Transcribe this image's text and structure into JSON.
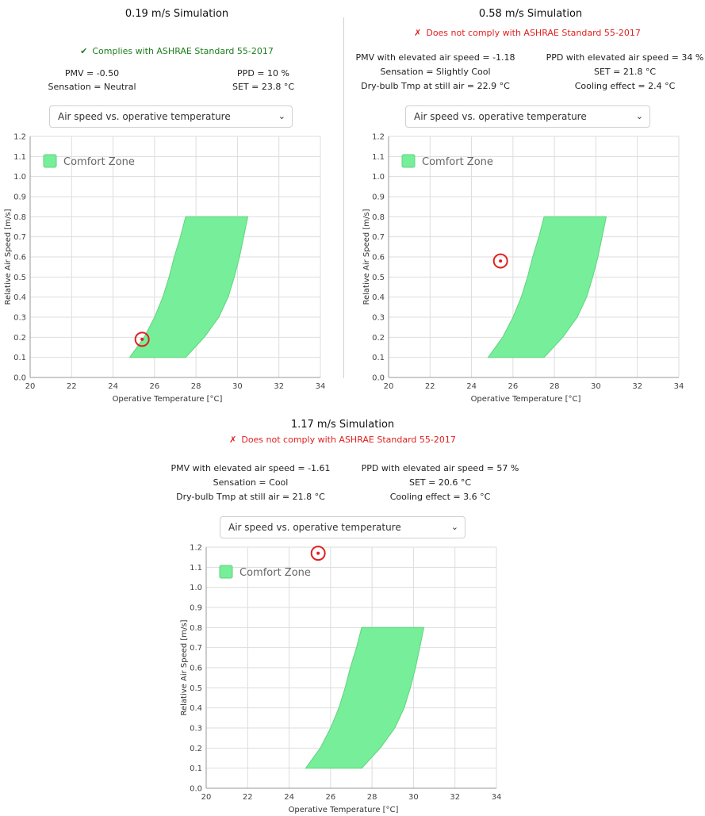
{
  "colors": {
    "comfort_fill": "#77ee99",
    "comfort_stroke": "#5fd47f",
    "point": "#e02020",
    "ok": "#1e7e1e",
    "bad": "#e02020",
    "grid": "#dddddd"
  },
  "panels": [
    {
      "title": "0.19 m/s Simulation",
      "status": {
        "ok": true,
        "icon": "check-icon",
        "mark": "✔",
        "text": "Complies with ASHRAE Standard 55-2017"
      },
      "metrics": {
        "left": [
          "PMV = -0.50",
          "Sensation = Neutral"
        ],
        "right": [
          "PPD = 10 %",
          "SET = 23.8 °C"
        ]
      },
      "select": {
        "value": "Air speed vs. operative temperature"
      }
    },
    {
      "title": "0.58 m/s Simulation",
      "status": {
        "ok": false,
        "icon": "cross-icon",
        "mark": "✗",
        "text": "Does not comply with ASHRAE Standard 55-2017"
      },
      "metrics": {
        "left": [
          "PMV with elevated air speed = -1.18",
          "Sensation = Slightly Cool",
          "Dry-bulb Tmp at still air = 22.9 °C"
        ],
        "right": [
          "PPD with elevated air speed = 34 %",
          "SET = 21.8 °C",
          "Cooling effect = 2.4 °C"
        ]
      },
      "select": {
        "value": "Air speed vs. operative temperature"
      }
    },
    {
      "title": "1.17 m/s Simulation",
      "status": {
        "ok": false,
        "icon": "cross-icon",
        "mark": "✗",
        "text": "Does not comply with ASHRAE Standard 55-2017"
      },
      "metrics": {
        "left": [
          "PMV with elevated air speed = -1.61",
          "Sensation = Cool",
          "Dry-bulb Tmp at still air = 21.8 °C"
        ],
        "right": [
          "PPD with elevated air speed = 57 %",
          "SET = 20.6 °C",
          "Cooling effect = 3.6 °C"
        ]
      },
      "select": {
        "value": "Air speed vs. operative temperature"
      }
    }
  ],
  "chart_data": [
    {
      "type": "area",
      "xlabel": "Operative Temperature [°C]",
      "ylabel": "Relative Air Speed [m/s]",
      "xlim": [
        20,
        34
      ],
      "ylim": [
        0,
        1.2
      ],
      "xticks": [
        20,
        22,
        24,
        26,
        28,
        30,
        32,
        34
      ],
      "yticks": [
        0.0,
        0.1,
        0.2,
        0.3,
        0.4,
        0.5,
        0.6,
        0.7,
        0.8,
        0.9,
        1.0,
        1.1,
        1.2
      ],
      "legend": {
        "label": "Comfort Zone",
        "placement": "top-left"
      },
      "grid": true,
      "comfort_zone": {
        "lower_edge": [
          [
            24.8,
            0.1
          ],
          [
            25.5,
            0.2
          ],
          [
            26.0,
            0.3
          ],
          [
            26.4,
            0.4
          ],
          [
            26.7,
            0.5
          ],
          [
            26.95,
            0.6
          ],
          [
            27.25,
            0.7
          ],
          [
            27.5,
            0.8
          ]
        ],
        "upper_edge": [
          [
            27.5,
            0.1
          ],
          [
            28.4,
            0.2
          ],
          [
            29.1,
            0.3
          ],
          [
            29.55,
            0.4
          ],
          [
            29.85,
            0.5
          ],
          [
            30.1,
            0.6
          ],
          [
            30.3,
            0.7
          ],
          [
            30.5,
            0.8
          ]
        ]
      },
      "point": {
        "x": 25.4,
        "y": 0.19
      }
    },
    {
      "type": "area",
      "xlabel": "Operative Temperature [°C]",
      "ylabel": "Relative Air Speed [m/s]",
      "xlim": [
        20,
        34
      ],
      "ylim": [
        0,
        1.2
      ],
      "xticks": [
        20,
        22,
        24,
        26,
        28,
        30,
        32,
        34
      ],
      "yticks": [
        0.0,
        0.1,
        0.2,
        0.3,
        0.4,
        0.5,
        0.6,
        0.7,
        0.8,
        0.9,
        1.0,
        1.1,
        1.2
      ],
      "legend": {
        "label": "Comfort Zone",
        "placement": "top-left"
      },
      "grid": true,
      "comfort_zone": {
        "lower_edge": [
          [
            24.8,
            0.1
          ],
          [
            25.5,
            0.2
          ],
          [
            26.0,
            0.3
          ],
          [
            26.4,
            0.4
          ],
          [
            26.7,
            0.5
          ],
          [
            26.95,
            0.6
          ],
          [
            27.25,
            0.7
          ],
          [
            27.5,
            0.8
          ]
        ],
        "upper_edge": [
          [
            27.5,
            0.1
          ],
          [
            28.4,
            0.2
          ],
          [
            29.1,
            0.3
          ],
          [
            29.55,
            0.4
          ],
          [
            29.85,
            0.5
          ],
          [
            30.1,
            0.6
          ],
          [
            30.3,
            0.7
          ],
          [
            30.5,
            0.8
          ]
        ]
      },
      "point": {
        "x": 25.4,
        "y": 0.58
      }
    },
    {
      "type": "area",
      "xlabel": "Operative Temperature [°C]",
      "ylabel": "Relative Air Speed [m/s]",
      "xlim": [
        20,
        34
      ],
      "ylim": [
        0,
        1.2
      ],
      "xticks": [
        20,
        22,
        24,
        26,
        28,
        30,
        32,
        34
      ],
      "yticks": [
        0.0,
        0.1,
        0.2,
        0.3,
        0.4,
        0.5,
        0.6,
        0.7,
        0.8,
        0.9,
        1.0,
        1.1,
        1.2
      ],
      "legend": {
        "label": "Comfort Zone",
        "placement": "top-left"
      },
      "grid": true,
      "comfort_zone": {
        "lower_edge": [
          [
            24.8,
            0.1
          ],
          [
            25.5,
            0.2
          ],
          [
            26.0,
            0.3
          ],
          [
            26.4,
            0.4
          ],
          [
            26.7,
            0.5
          ],
          [
            26.95,
            0.6
          ],
          [
            27.25,
            0.7
          ],
          [
            27.5,
            0.8
          ]
        ],
        "upper_edge": [
          [
            27.5,
            0.1
          ],
          [
            28.4,
            0.2
          ],
          [
            29.1,
            0.3
          ],
          [
            29.55,
            0.4
          ],
          [
            29.85,
            0.5
          ],
          [
            30.1,
            0.6
          ],
          [
            30.3,
            0.7
          ],
          [
            30.5,
            0.8
          ]
        ]
      },
      "point": {
        "x": 25.4,
        "y": 1.17
      }
    }
  ]
}
